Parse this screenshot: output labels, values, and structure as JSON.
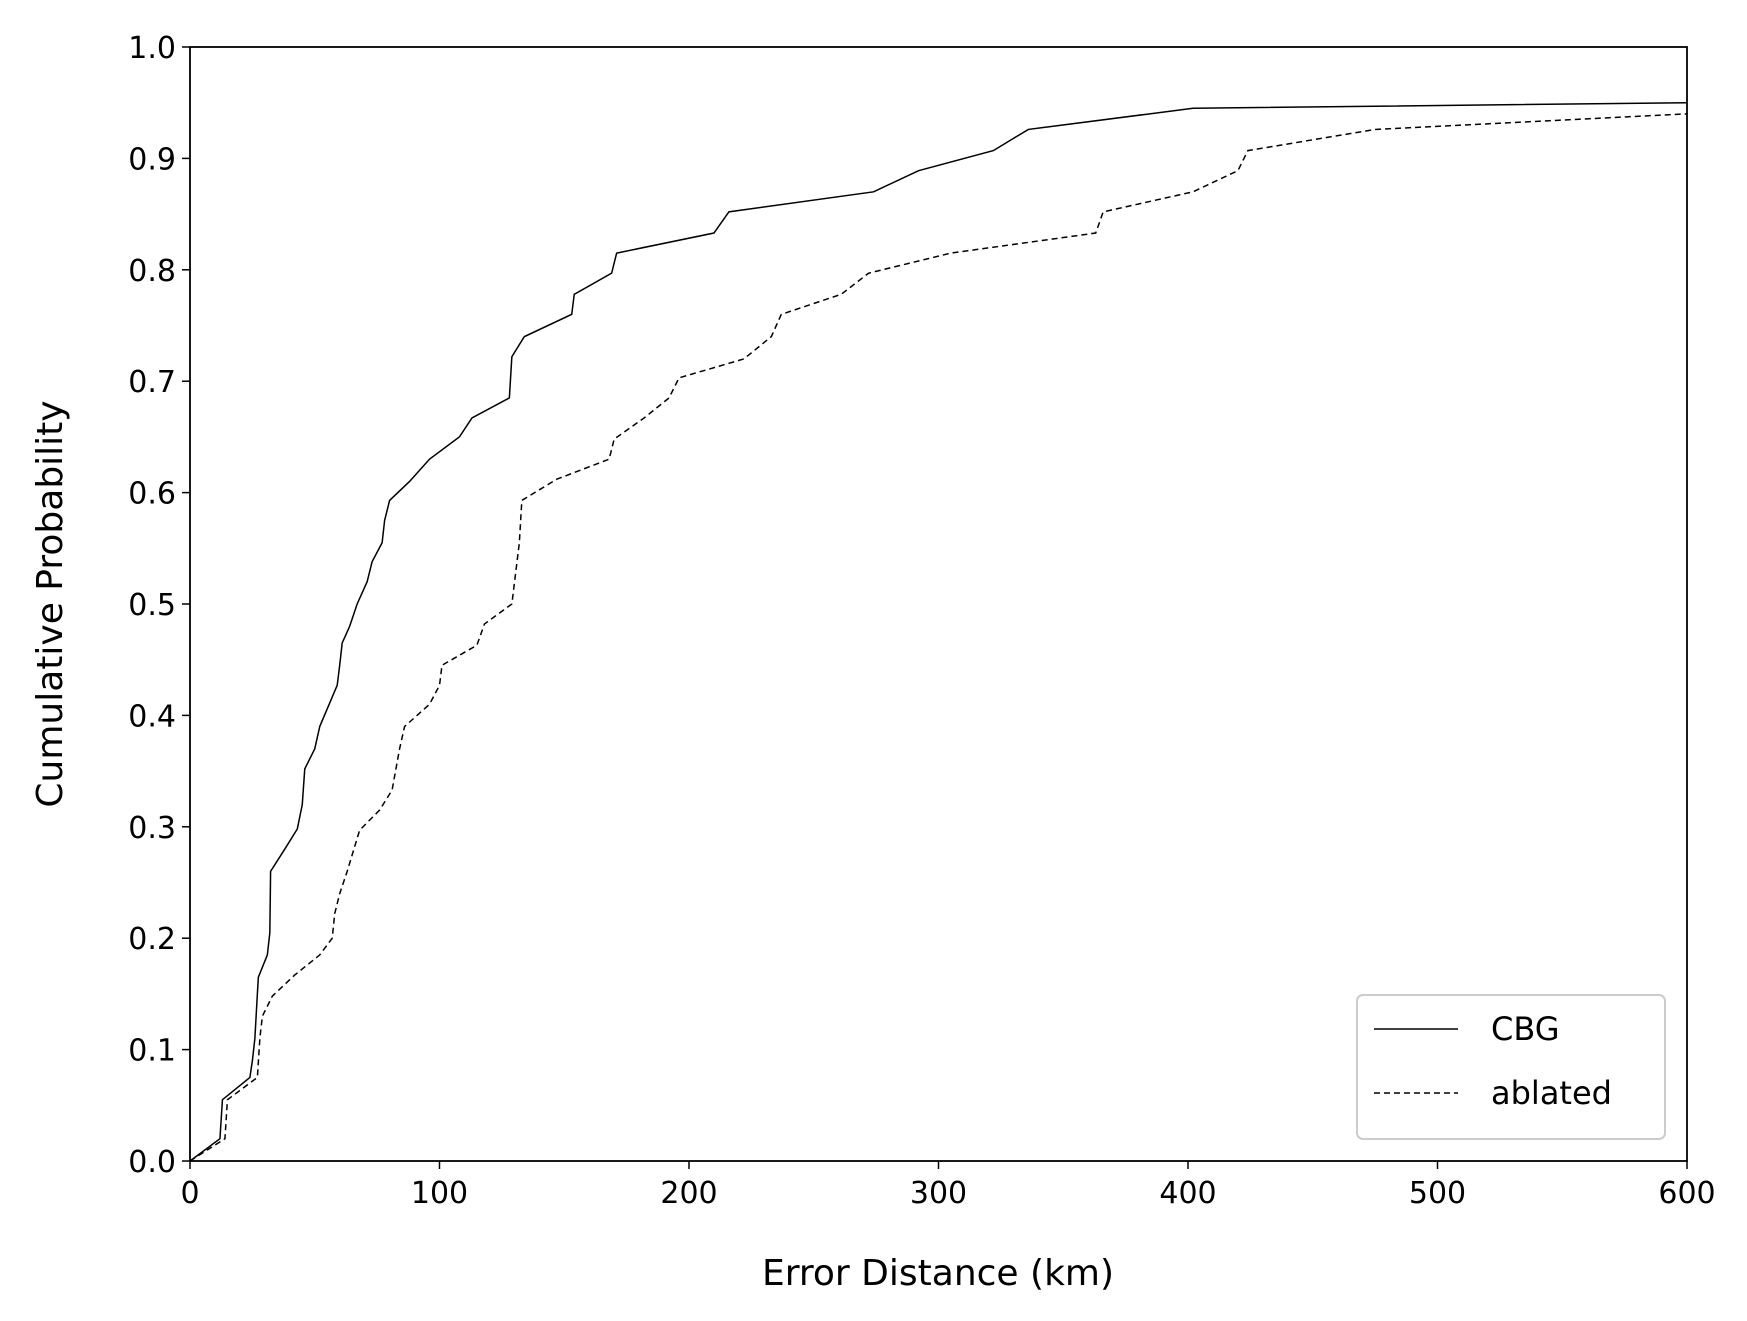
{
  "chart_data": {
    "type": "line",
    "xlabel": "Error Distance (km)",
    "ylabel": "Cumulative Probability",
    "xlim": [
      0,
      600
    ],
    "ylim": [
      0,
      1
    ],
    "xticks": [
      0,
      100,
      200,
      300,
      400,
      500,
      600
    ],
    "yticks": [
      {
        "value": 0,
        "label": "0.0"
      },
      0.1,
      0.2,
      0.3,
      0.4,
      0.5,
      0.6,
      0.7,
      0.8,
      0.9,
      {
        "value": 1,
        "label": "1.0"
      }
    ],
    "legend": "lower right",
    "grid": false,
    "series": [
      {
        "name": "CBG",
        "color": "#000000",
        "dash": "solid",
        "x": [
          0,
          12,
          13,
          24,
          25,
          26,
          27,
          27.4,
          31,
          32,
          32.3,
          38,
          43,
          45,
          46,
          50,
          52,
          59,
          60,
          61,
          64,
          67,
          71,
          73,
          77,
          78,
          80,
          88,
          96,
          108,
          113,
          128,
          129,
          134,
          153,
          154,
          169,
          171,
          210,
          216,
          274,
          292,
          322,
          336,
          402,
          600
        ],
        "values": [
          0,
          0.02,
          0.055,
          0.075,
          0.09,
          0.11,
          0.15,
          0.165,
          0.185,
          0.205,
          0.26,
          0.28,
          0.298,
          0.32,
          0.352,
          0.37,
          0.39,
          0.427,
          0.445,
          0.465,
          0.48,
          0.5,
          0.52,
          0.538,
          0.555,
          0.575,
          0.593,
          0.61,
          0.63,
          0.65,
          0.667,
          0.685,
          0.722,
          0.74,
          0.76,
          0.778,
          0.797,
          0.815,
          0.833,
          0.852,
          0.87,
          0.889,
          0.907,
          0.926,
          0.945,
          0.95
        ]
      },
      {
        "name": "ablated",
        "color": "#000000",
        "dash": "dashed",
        "x": [
          0,
          14,
          15,
          27,
          28,
          29,
          33,
          42,
          52,
          57,
          58,
          60,
          63,
          68,
          76,
          81,
          84,
          86,
          96,
          100,
          101,
          115,
          118,
          129,
          132,
          133,
          147,
          168,
          170,
          182,
          192,
          196,
          222,
          233,
          237,
          261,
          272,
          305,
          363,
          366,
          402,
          420,
          424,
          475,
          600
        ],
        "values": [
          0,
          0.02,
          0.055,
          0.075,
          0.11,
          0.13,
          0.148,
          0.167,
          0.185,
          0.2,
          0.222,
          0.24,
          0.26,
          0.297,
          0.315,
          0.333,
          0.37,
          0.39,
          0.41,
          0.427,
          0.445,
          0.463,
          0.482,
          0.5,
          0.555,
          0.593,
          0.612,
          0.63,
          0.648,
          0.667,
          0.685,
          0.703,
          0.72,
          0.74,
          0.76,
          0.778,
          0.797,
          0.815,
          0.833,
          0.852,
          0.87,
          0.889,
          0.907,
          0.926,
          0.94
        ]
      }
    ]
  }
}
